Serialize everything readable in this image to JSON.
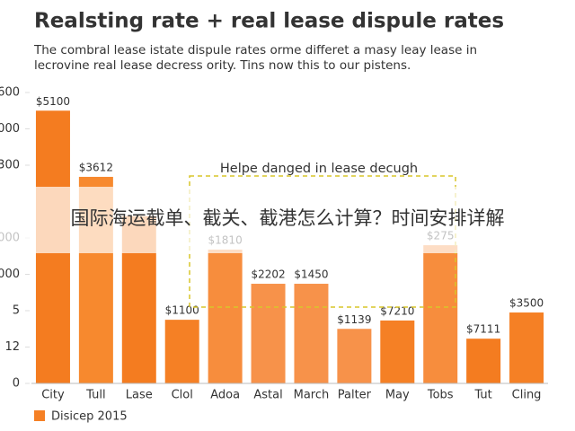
{
  "chart_data": {
    "type": "bar",
    "title": "Realsting rate + real lease dispule rates",
    "subtitle": [
      "The combral lease istate dispule rates orme differet a masy leay lease in",
      "lecrovine real lease decress ority. Tins now this to our pistens."
    ],
    "categories": [
      "City",
      "Tull",
      "Lase",
      "Clol",
      "Adoa",
      "Astal",
      "March",
      "Palter",
      "May",
      "Tobs",
      "Tut",
      "Cling"
    ],
    "series": [
      {
        "name": "Disicep 2015",
        "color": "#f58025",
        "values": [
          7.5,
          5.68,
          4.6,
          1.75,
          3.68,
          2.74,
          2.74,
          1.5,
          1.73,
          3.8,
          1.23,
          1.95
        ],
        "value_labels": [
          "$5100",
          "$3612",
          null,
          "$1100",
          "$1810",
          "$2202",
          "$1450",
          "$1139",
          "$7210",
          "$275",
          "$7111",
          "$3500"
        ],
        "colors": [
          "#f47c20",
          "#f7892e",
          "#f47c20",
          "#f58025",
          "#f78d3d",
          "#f7924a",
          "#f7924a",
          "#f7924a",
          "#f58025",
          "#f78d3d",
          "#f47c20",
          "#f58025"
        ]
      }
    ],
    "ylim": [
      0,
      8
    ],
    "yticks": [
      0,
      {
        "value": 1,
        "label": "12"
      },
      {
        "value": 2,
        "label": "5"
      },
      {
        "value": 3,
        "label": "000"
      },
      {
        "value": 4,
        "label": "000"
      },
      {
        "value": 6,
        "label": "300"
      },
      {
        "value": 7,
        "label": "000"
      },
      {
        "value": 8,
        "label": "600"
      }
    ],
    "annotation": "Helpe danged in lease decugh",
    "overlay_text": "国际海运截单、截关、截港怎么计算？时间安排详解"
  }
}
